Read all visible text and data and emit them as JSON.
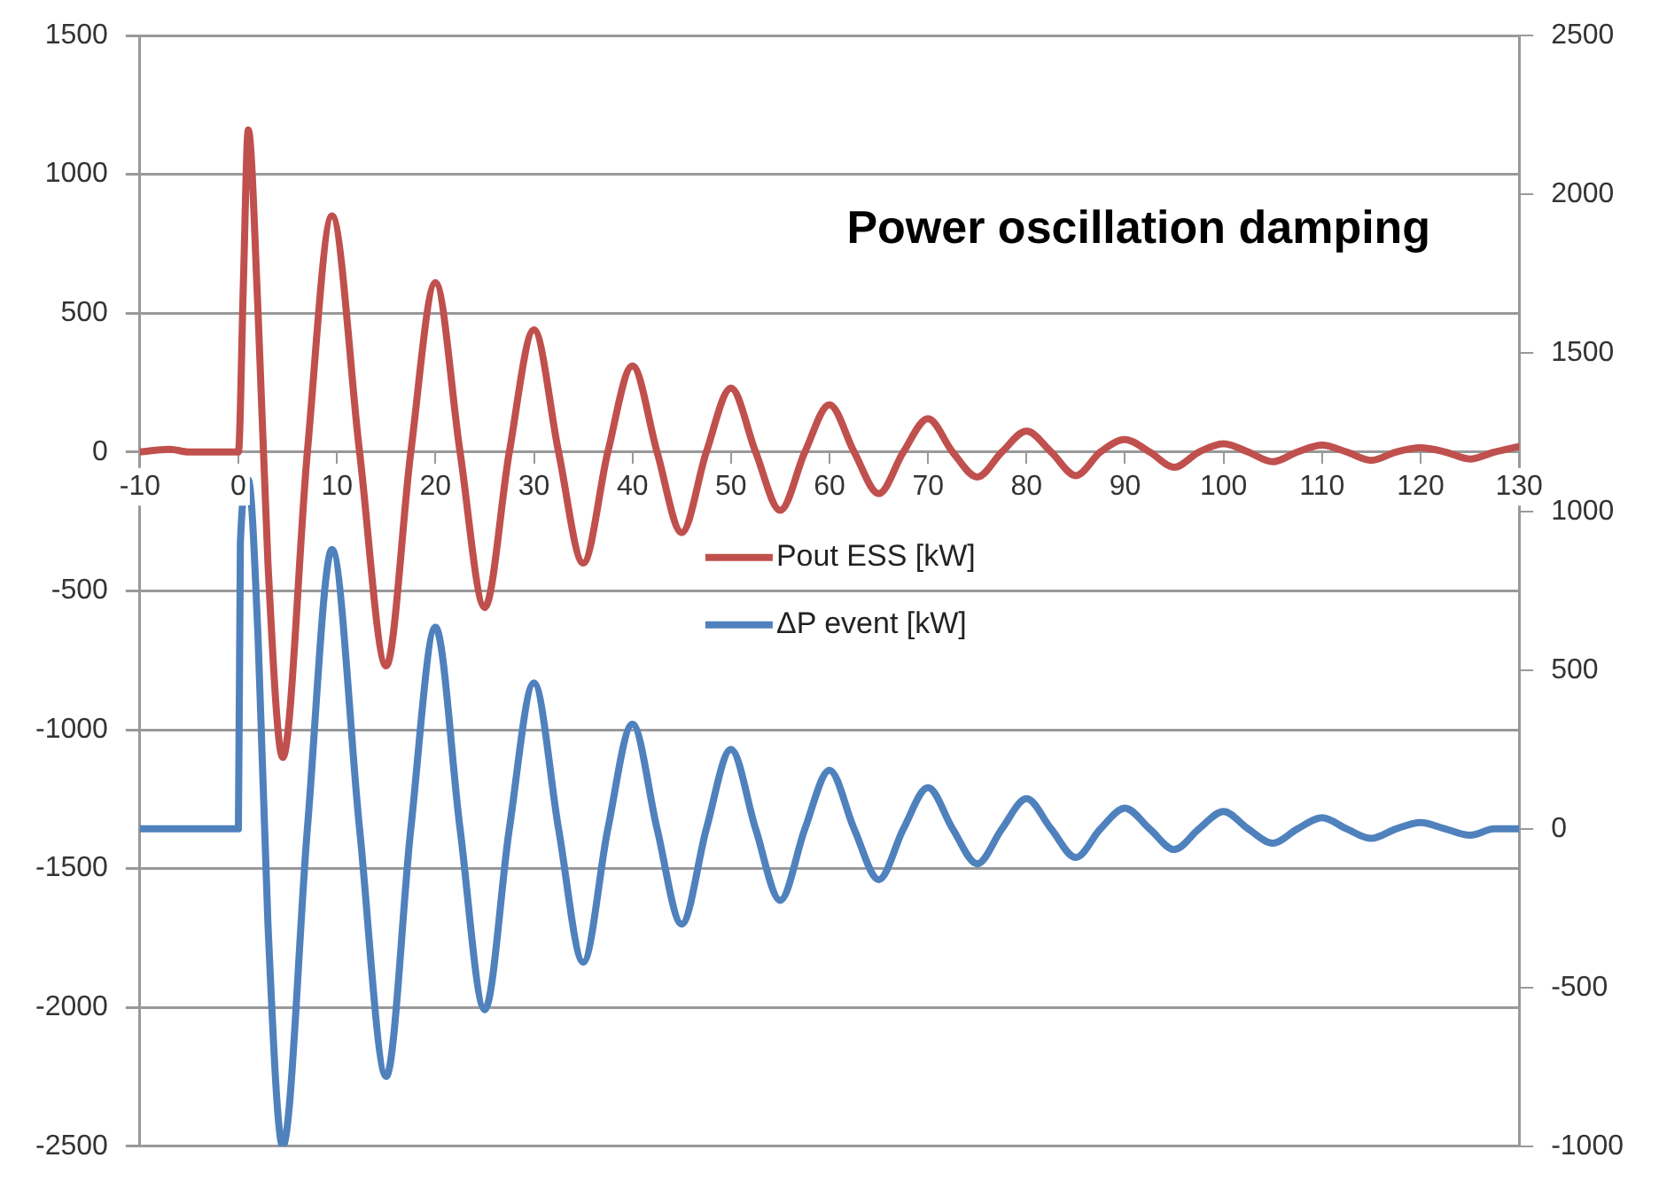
{
  "chart_data": {
    "type": "line",
    "title": "Power oscillation damping",
    "xlim": [
      -10,
      130
    ],
    "xticks": [
      -10,
      0,
      10,
      20,
      30,
      40,
      50,
      60,
      70,
      80,
      90,
      100,
      110,
      120,
      130
    ],
    "ylim": [
      -2500,
      1500
    ],
    "yticks": [
      -2500,
      -2000,
      -1500,
      -1000,
      -500,
      0,
      500,
      1000,
      1500
    ],
    "y2lim": [
      -1000,
      2500
    ],
    "y2ticks": [
      -1000,
      -500,
      0,
      500,
      1000,
      1500,
      2000,
      2500
    ],
    "grid": "y",
    "legend": "center",
    "marker": "none",
    "line_style": "solid",
    "series": [
      {
        "name": "Pout ESS [kW]",
        "color": "#c0504d",
        "x": [
          -10,
          -7,
          -5,
          0,
          0.5,
          1,
          2,
          3,
          4.5,
          7,
          9.5,
          12.3,
          15,
          17.5,
          20,
          22.5,
          25,
          27.5,
          30,
          32.5,
          35,
          37.5,
          40,
          42.5,
          45,
          47.5,
          50,
          52.5,
          55,
          57.5,
          60,
          62.5,
          65,
          67.5,
          70,
          72.5,
          75,
          77.5,
          80,
          82.5,
          85,
          87.5,
          90,
          92.5,
          95,
          97.5,
          100,
          102.5,
          105,
          107.5,
          110,
          112.5,
          115,
          117.5,
          120,
          122.5,
          125,
          127.5,
          130
        ],
        "values": [
          0,
          10,
          0,
          0,
          600,
          1160,
          500,
          -400,
          -1100,
          0,
          850,
          0,
          -770,
          0,
          610,
          0,
          -560,
          0,
          440,
          0,
          -400,
          0,
          310,
          0,
          -290,
          0,
          230,
          0,
          -210,
          0,
          170,
          0,
          -150,
          0,
          120,
          0,
          -90,
          0,
          75,
          0,
          -85,
          0,
          45,
          0,
          -55,
          0,
          30,
          0,
          -35,
          0,
          25,
          0,
          -30,
          0,
          15,
          0,
          -25,
          0,
          20
        ]
      },
      {
        "name": "ΔP event [kW]",
        "color": "#4f81bd",
        "axis": "y2",
        "x": [
          -10,
          0,
          0.2,
          1,
          2,
          3,
          4.5,
          7,
          9.5,
          12.3,
          15,
          17.5,
          20,
          22.5,
          25,
          27.5,
          30,
          32.5,
          35,
          37.5,
          40,
          42.5,
          45,
          47.5,
          50,
          52.5,
          55,
          57.5,
          60,
          62.5,
          65,
          67.5,
          70,
          72.5,
          75,
          77.5,
          80,
          82.5,
          85,
          87.5,
          90,
          92.5,
          95,
          97.5,
          100,
          102.5,
          105,
          107.5,
          110,
          112.5,
          115,
          117.5,
          120,
          122.5,
          125,
          127.5,
          130
        ],
        "values": [
          0,
          0,
          900,
          1100,
          600,
          -300,
          -1000,
          0,
          880,
          0,
          -780,
          0,
          635,
          0,
          -570,
          0,
          460,
          0,
          -420,
          0,
          330,
          0,
          -300,
          0,
          250,
          0,
          -225,
          0,
          185,
          0,
          -160,
          0,
          130,
          0,
          -110,
          0,
          95,
          0,
          -90,
          0,
          65,
          0,
          -65,
          0,
          55,
          0,
          -45,
          0,
          35,
          0,
          -30,
          0,
          20,
          0,
          -20,
          0,
          0
        ]
      }
    ]
  }
}
